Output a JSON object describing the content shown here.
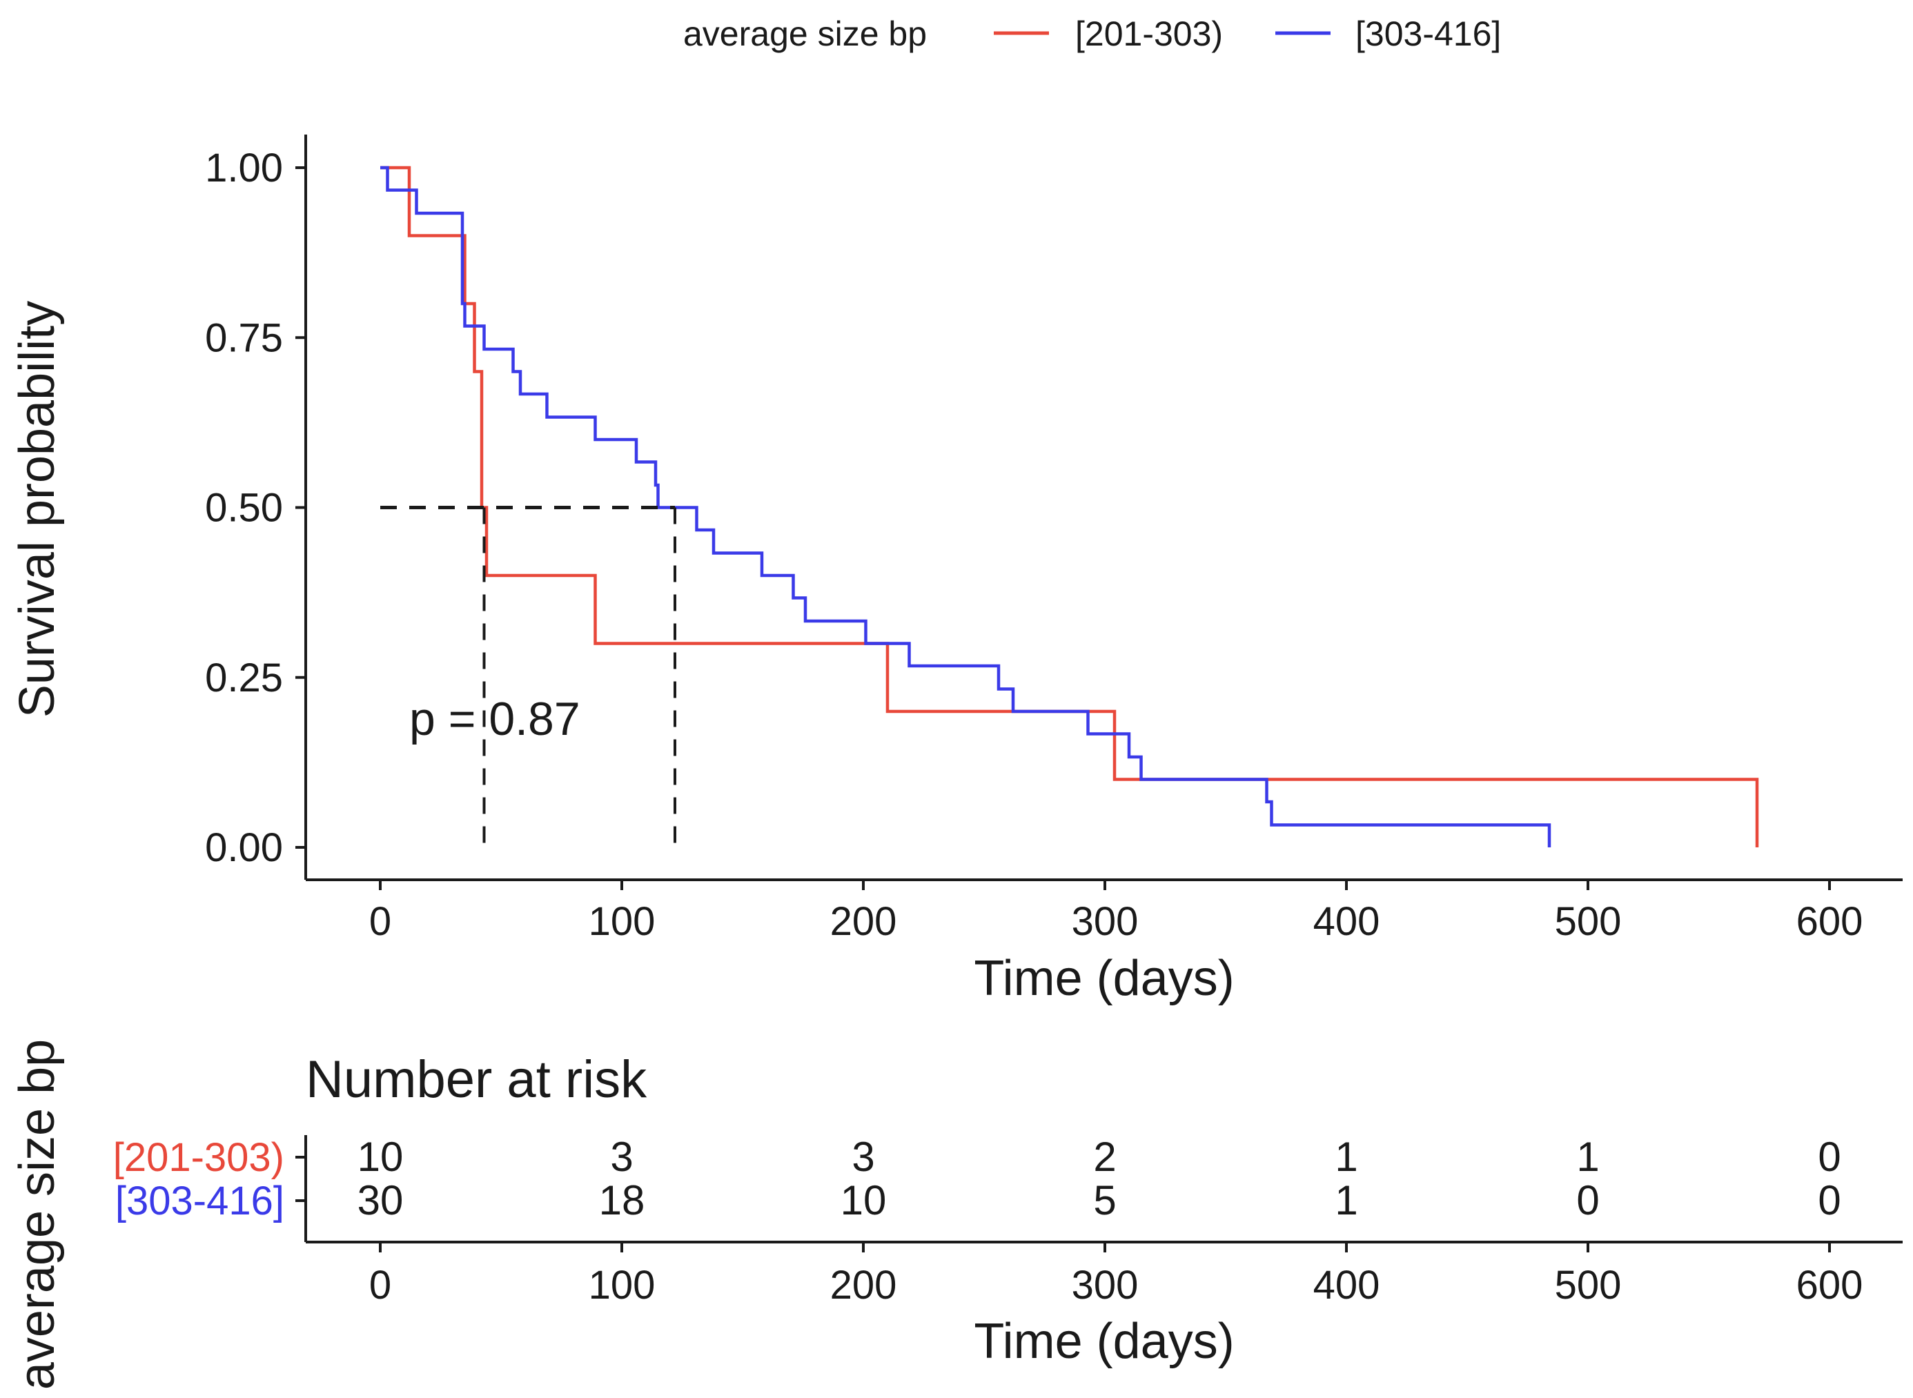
{
  "chart_data": {
    "type": "line",
    "subtype": "kaplan-meier step",
    "legend": {
      "title": "average size bp",
      "position": "top",
      "entries": [
        {
          "label": "[201-303)",
          "color": "#e8483a"
        },
        {
          "label": "[303-416]",
          "color": "#3a3ae8"
        }
      ]
    },
    "xlabel": "Time (days)",
    "ylabel": "Survival probability",
    "xlim": [
      -30,
      630
    ],
    "ylim": [
      -0.05,
      1.05
    ],
    "x_ticks": [
      0,
      100,
      200,
      300,
      400,
      500,
      600
    ],
    "x_tick_labels": [
      "0",
      "100",
      "200",
      "300",
      "400",
      "500",
      "600"
    ],
    "y_ticks": [
      0,
      0.25,
      0.5,
      0.75,
      1.0
    ],
    "y_tick_labels": [
      "0.00",
      "0.25",
      "0.50",
      "0.75",
      "1.00"
    ],
    "series": [
      {
        "name": "[201-303)",
        "color": "#e8483a",
        "steps": [
          [
            0,
            1.0
          ],
          [
            12,
            0.9
          ],
          [
            35,
            0.8
          ],
          [
            39,
            0.7
          ],
          [
            42,
            0.5
          ],
          [
            44,
            0.4
          ],
          [
            89,
            0.3
          ],
          [
            210,
            0.2
          ],
          [
            304,
            0.1
          ],
          [
            570,
            0.0
          ]
        ]
      },
      {
        "name": "[303-416]",
        "color": "#3a3ae8",
        "steps": [
          [
            0,
            1.0
          ],
          [
            3,
            0.967
          ],
          [
            15,
            0.933
          ],
          [
            34,
            0.8
          ],
          [
            35,
            0.767
          ],
          [
            43,
            0.733
          ],
          [
            55,
            0.7
          ],
          [
            58,
            0.667
          ],
          [
            69,
            0.633
          ],
          [
            89,
            0.6
          ],
          [
            106,
            0.567
          ],
          [
            114,
            0.533
          ],
          [
            115,
            0.5
          ],
          [
            131,
            0.467
          ],
          [
            138,
            0.433
          ],
          [
            158,
            0.4
          ],
          [
            171,
            0.367
          ],
          [
            176,
            0.333
          ],
          [
            201,
            0.3
          ],
          [
            219,
            0.267
          ],
          [
            256,
            0.233
          ],
          [
            262,
            0.2
          ],
          [
            293,
            0.167
          ],
          [
            310,
            0.133
          ],
          [
            315,
            0.1
          ],
          [
            367,
            0.067
          ],
          [
            369,
            0.033
          ],
          [
            484,
            0.0
          ]
        ]
      }
    ],
    "median_lines": {
      "y": 0.5,
      "x": [
        43,
        122
      ]
    },
    "annotation": {
      "text": "p = 0.87",
      "x": 12,
      "y": 0.19
    },
    "risk_table": {
      "title": "Number at risk",
      "ylabel": "average size bp",
      "xlabel": "Time (days)",
      "times": [
        0,
        100,
        200,
        300,
        400,
        500,
        600
      ],
      "rows": [
        {
          "label": "[201-303)",
          "color": "#e8483a",
          "counts": [
            "10",
            "3",
            "3",
            "2",
            "1",
            "1",
            "0"
          ]
        },
        {
          "label": "[303-416]",
          "color": "#3a3ae8",
          "counts": [
            "30",
            "18",
            "10",
            "5",
            "1",
            "0",
            "0"
          ]
        }
      ]
    }
  }
}
